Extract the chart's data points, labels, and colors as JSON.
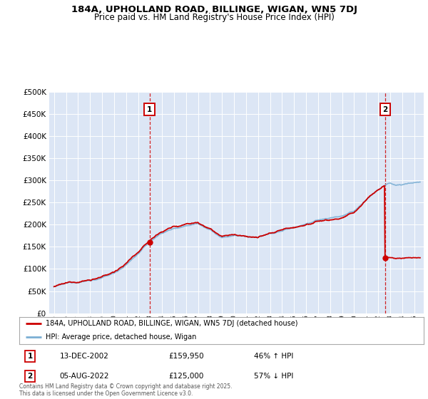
{
  "title1": "184A, UPHOLLAND ROAD, BILLINGE, WIGAN, WN5 7DJ",
  "title2": "Price paid vs. HM Land Registry's House Price Index (HPI)",
  "legend_property": "184A, UPHOLLAND ROAD, BILLINGE, WIGAN, WN5 7DJ (detached house)",
  "legend_hpi": "HPI: Average price, detached house, Wigan",
  "annotation1_date": "13-DEC-2002",
  "annotation1_price": "£159,950",
  "annotation1_pct": "46% ↑ HPI",
  "annotation2_date": "05-AUG-2022",
  "annotation2_price": "£125,000",
  "annotation2_pct": "57% ↓ HPI",
  "footer": "Contains HM Land Registry data © Crown copyright and database right 2025.\nThis data is licensed under the Open Government Licence v3.0.",
  "property_color": "#cc0000",
  "hpi_color": "#7bafd4",
  "background_color": "#dce6f5",
  "ylim": [
    0,
    500000
  ],
  "yticks": [
    0,
    50000,
    100000,
    150000,
    200000,
    250000,
    300000,
    350000,
    400000,
    450000,
    500000
  ],
  "sale1_year": 2002.958,
  "sale1_price": 159950,
  "sale2_year": 2022.583,
  "sale2_price": 125000,
  "xmin": 1994.6,
  "xmax": 2025.8
}
